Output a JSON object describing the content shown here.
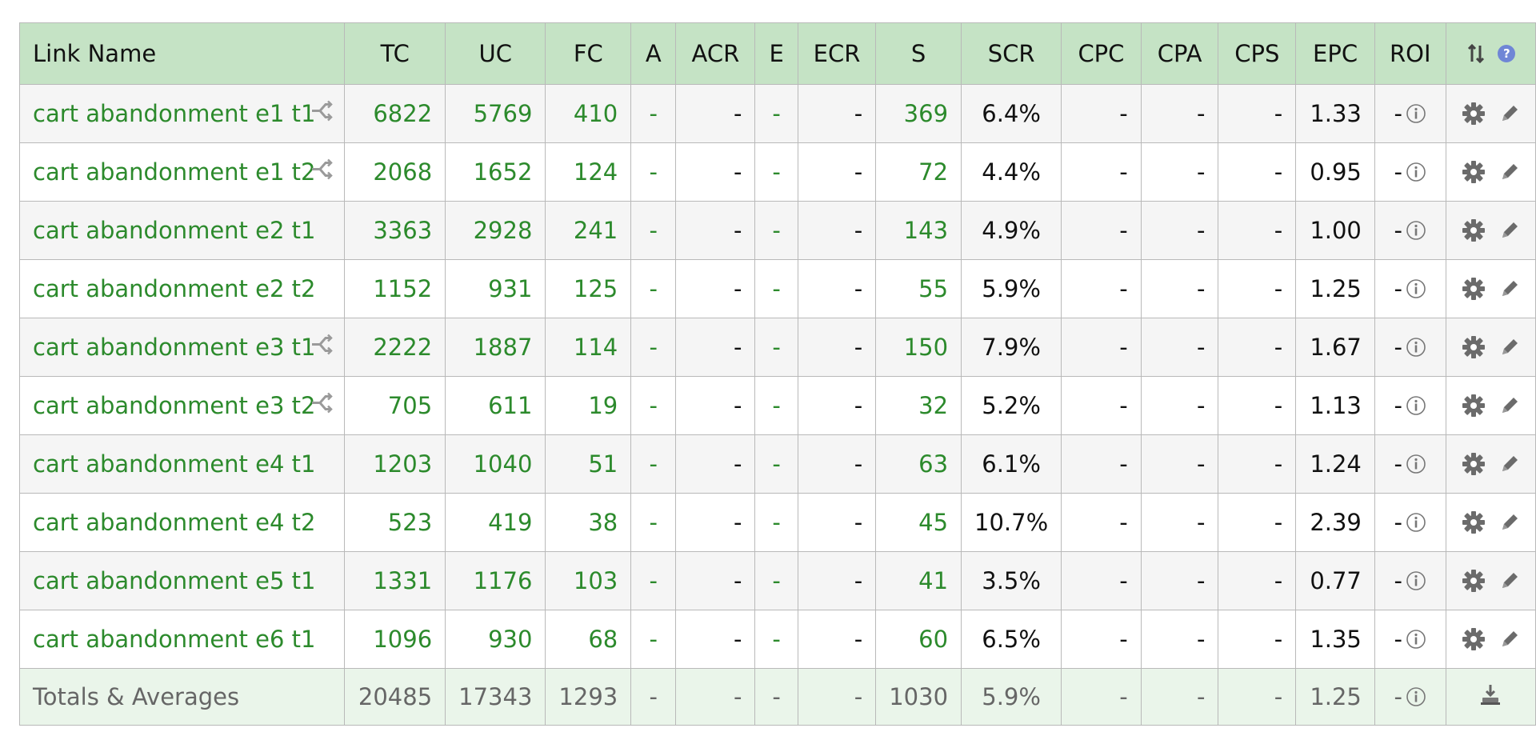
{
  "headers": {
    "link_name": "Link Name",
    "tc": "TC",
    "uc": "UC",
    "fc": "FC",
    "a": "A",
    "acr": "ACR",
    "e": "E",
    "ecr": "ECR",
    "s": "S",
    "scr": "SCR",
    "cpc": "CPC",
    "cpa": "CPA",
    "cps": "CPS",
    "epc": "EPC",
    "roi": "ROI",
    "sort_icon": "sort-arrows-icon",
    "help_icon": "help-icon",
    "help_glyph": "?"
  },
  "rows": [
    {
      "name": "cart abandonment e1 t1",
      "split": true,
      "tc": "6822",
      "uc": "5769",
      "fc": "410",
      "a": "-",
      "acr": "-",
      "e": "-",
      "ecr": "-",
      "s": "369",
      "scr": "6.4%",
      "cpc": "-",
      "cpa": "-",
      "cps": "-",
      "epc": "1.33",
      "roi": "-"
    },
    {
      "name": "cart abandonment e1 t2",
      "split": true,
      "tc": "2068",
      "uc": "1652",
      "fc": "124",
      "a": "-",
      "acr": "-",
      "e": "-",
      "ecr": "-",
      "s": "72",
      "scr": "4.4%",
      "cpc": "-",
      "cpa": "-",
      "cps": "-",
      "epc": "0.95",
      "roi": "-"
    },
    {
      "name": "cart abandonment e2 t1",
      "split": false,
      "tc": "3363",
      "uc": "2928",
      "fc": "241",
      "a": "-",
      "acr": "-",
      "e": "-",
      "ecr": "-",
      "s": "143",
      "scr": "4.9%",
      "cpc": "-",
      "cpa": "-",
      "cps": "-",
      "epc": "1.00",
      "roi": "-"
    },
    {
      "name": "cart abandonment e2 t2",
      "split": false,
      "tc": "1152",
      "uc": "931",
      "fc": "125",
      "a": "-",
      "acr": "-",
      "e": "-",
      "ecr": "-",
      "s": "55",
      "scr": "5.9%",
      "cpc": "-",
      "cpa": "-",
      "cps": "-",
      "epc": "1.25",
      "roi": "-"
    },
    {
      "name": "cart abandonment e3 t1",
      "split": true,
      "tc": "2222",
      "uc": "1887",
      "fc": "114",
      "a": "-",
      "acr": "-",
      "e": "-",
      "ecr": "-",
      "s": "150",
      "scr": "7.9%",
      "cpc": "-",
      "cpa": "-",
      "cps": "-",
      "epc": "1.67",
      "roi": "-"
    },
    {
      "name": "cart abandonment e3 t2",
      "split": true,
      "tc": "705",
      "uc": "611",
      "fc": "19",
      "a": "-",
      "acr": "-",
      "e": "-",
      "ecr": "-",
      "s": "32",
      "scr": "5.2%",
      "cpc": "-",
      "cpa": "-",
      "cps": "-",
      "epc": "1.13",
      "roi": "-"
    },
    {
      "name": "cart abandonment e4 t1",
      "split": false,
      "tc": "1203",
      "uc": "1040",
      "fc": "51",
      "a": "-",
      "acr": "-",
      "e": "-",
      "ecr": "-",
      "s": "63",
      "scr": "6.1%",
      "cpc": "-",
      "cpa": "-",
      "cps": "-",
      "epc": "1.24",
      "roi": "-"
    },
    {
      "name": "cart abandonment e4 t2",
      "split": false,
      "tc": "523",
      "uc": "419",
      "fc": "38",
      "a": "-",
      "acr": "-",
      "e": "-",
      "ecr": "-",
      "s": "45",
      "scr": "10.7%",
      "cpc": "-",
      "cpa": "-",
      "cps": "-",
      "epc": "2.39",
      "roi": "-"
    },
    {
      "name": "cart abandonment e5 t1",
      "split": false,
      "tc": "1331",
      "uc": "1176",
      "fc": "103",
      "a": "-",
      "acr": "-",
      "e": "-",
      "ecr": "-",
      "s": "41",
      "scr": "3.5%",
      "cpc": "-",
      "cpa": "-",
      "cps": "-",
      "epc": "0.77",
      "roi": "-"
    },
    {
      "name": "cart abandonment e6 t1",
      "split": false,
      "tc": "1096",
      "uc": "930",
      "fc": "68",
      "a": "-",
      "acr": "-",
      "e": "-",
      "ecr": "-",
      "s": "60",
      "scr": "6.5%",
      "cpc": "-",
      "cpa": "-",
      "cps": "-",
      "epc": "1.35",
      "roi": "-"
    }
  ],
  "totals": {
    "label": "Totals & Averages",
    "tc": "20485",
    "uc": "17343",
    "fc": "1293",
    "a": "-",
    "acr": "-",
    "e": "-",
    "ecr": "-",
    "s": "1030",
    "scr": "5.9%",
    "cpc": "-",
    "cpa": "-",
    "cps": "-",
    "epc": "1.25",
    "roi": "-"
  },
  "icons": {
    "split": "split-test-icon",
    "info": "info-icon",
    "settings": "gear-icon",
    "edit": "pencil-icon",
    "export": "export-icon"
  },
  "colors": {
    "header_bg": "#c5e3c5",
    "link_green": "#2c8a2c",
    "totals_bg": "#eaf5ea"
  }
}
